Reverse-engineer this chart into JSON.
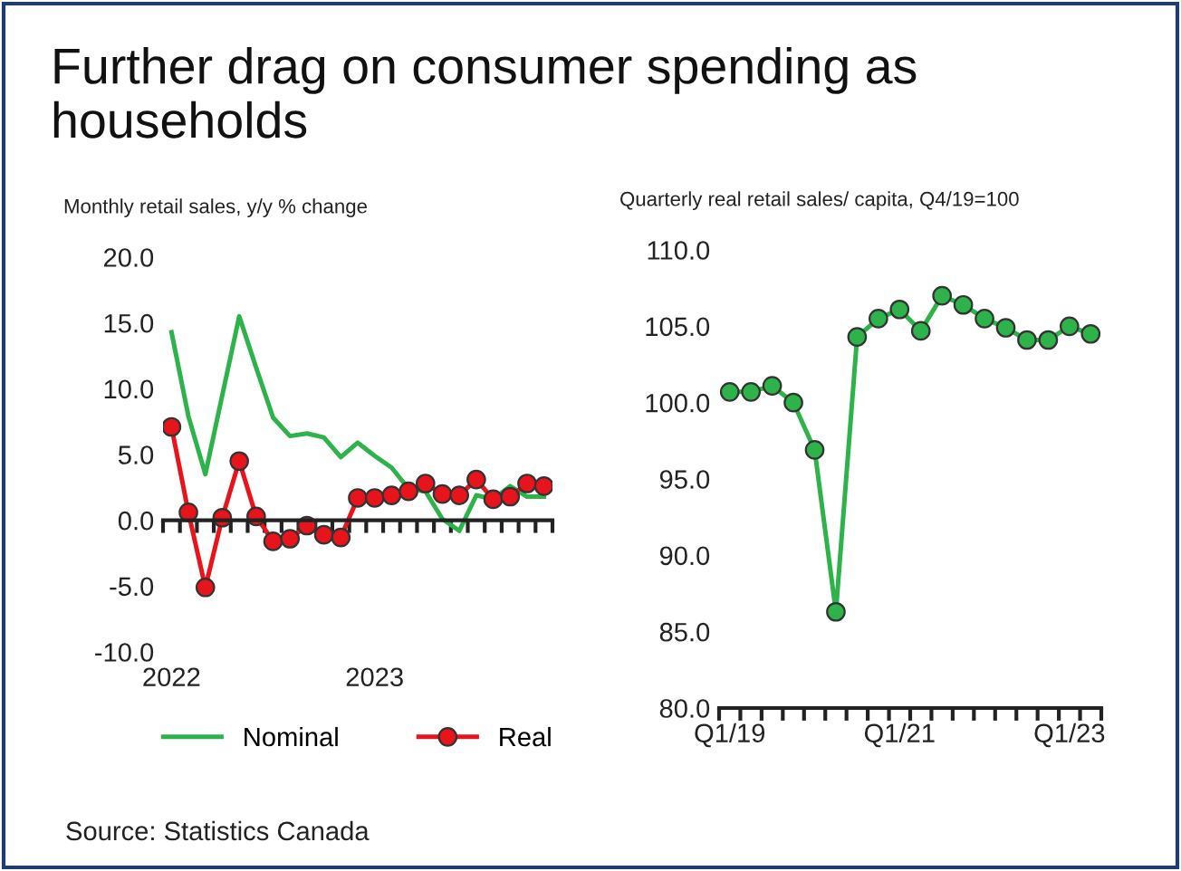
{
  "chart_data": [
    {
      "type": "line",
      "title": "Further drag on consumer spending as households",
      "subtitle": "Monthly retail sales, y/y % change",
      "categories": [
        "2022",
        null,
        null,
        null,
        null,
        null,
        null,
        null,
        null,
        null,
        null,
        null,
        "2023",
        null,
        null,
        null,
        null,
        null,
        null,
        null,
        null,
        null,
        null
      ],
      "series": [
        {
          "name": "Nominal",
          "color": "#2db34a",
          "marker": "none",
          "values": [
            14.3,
            7.9,
            3.5,
            9.5,
            15.5,
            11.6,
            7.8,
            6.4,
            6.6,
            6.3,
            4.8,
            5.9,
            4.9,
            4.0,
            2.4,
            2.2,
            0.1,
            -0.8,
            1.9,
            1.6,
            2.6,
            1.8,
            1.8
          ]
        },
        {
          "name": "Real",
          "color": "#e8141b",
          "marker": "circle",
          "values": [
            7.1,
            0.6,
            -5.1,
            0.2,
            4.5,
            0.3,
            -1.6,
            -1.4,
            -0.4,
            -1.1,
            -1.3,
            1.7,
            1.7,
            1.9,
            2.2,
            2.8,
            2.0,
            1.9,
            3.1,
            1.6,
            1.8,
            2.8,
            2.6
          ]
        }
      ],
      "ylim": [
        -10,
        20
      ],
      "yticks": [
        {
          "value": -10,
          "label": "-10.0"
        },
        {
          "value": -5,
          "label": "-5.0"
        },
        {
          "value": 0,
          "label": "0.0"
        },
        {
          "value": 5,
          "label": "5.0"
        },
        {
          "value": 10,
          "label": "10.0"
        },
        {
          "value": 15,
          "label": "15.0"
        },
        {
          "value": 20,
          "label": "20.0"
        }
      ],
      "legend": "bottom",
      "annotations": [
        "Source: Statistics Canada"
      ]
    },
    {
      "type": "line",
      "subtitle": "Quarterly real retail sales/ capita, Q4/19=100",
      "categories": [
        "Q1/19",
        null,
        null,
        null,
        null,
        null,
        null,
        null,
        "Q1/21",
        null,
        null,
        null,
        null,
        null,
        null,
        null,
        "Q1/23",
        null
      ],
      "series": [
        {
          "color": "#2db34a",
          "marker": "circle",
          "values": [
            100.7,
            100.7,
            101.1,
            100.0,
            96.9,
            86.3,
            104.3,
            105.5,
            106.1,
            104.7,
            107.0,
            106.4,
            105.5,
            104.9,
            104.1,
            104.1,
            105.0,
            104.5
          ]
        }
      ],
      "ylim": [
        80,
        110
      ],
      "yticks": [
        {
          "value": 80,
          "label": "80.0"
        },
        {
          "value": 85,
          "label": "85.0"
        },
        {
          "value": 90,
          "label": "90.0"
        },
        {
          "value": 95,
          "label": "95.0"
        },
        {
          "value": 100,
          "label": "100.0"
        },
        {
          "value": 105,
          "label": "105.0"
        },
        {
          "value": 110,
          "label": "110.0"
        }
      ],
      "legend": false
    }
  ]
}
